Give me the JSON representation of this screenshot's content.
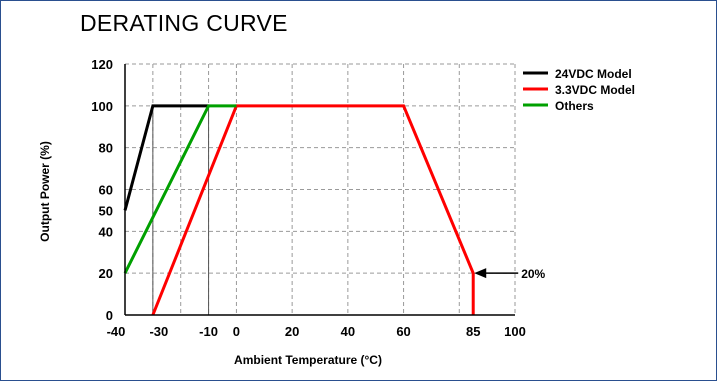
{
  "chart_data": {
    "type": "line",
    "title": "DERATING CURVE",
    "xlabel": "Ambient Temperature (°C)",
    "ylabel": "Output Power (%)",
    "xlim": [
      -40,
      100
    ],
    "ylim": [
      0,
      120
    ],
    "x_ticks": [
      "-40",
      "-30",
      "-10",
      "0",
      "20",
      "40",
      "60",
      "85",
      "100"
    ],
    "x_tick_values": [
      -40,
      -30,
      -10,
      0,
      20,
      40,
      60,
      85,
      100
    ],
    "y_ticks": [
      "0",
      "20",
      "40",
      "50",
      "60",
      "80",
      "100",
      "120"
    ],
    "y_tick_values": [
      0,
      20,
      40,
      50,
      60,
      80,
      100,
      120
    ],
    "grid": true,
    "legend_position": "right",
    "series": [
      {
        "name": "24VDC Model",
        "color": "#000000",
        "points": [
          [
            -40,
            50
          ],
          [
            -30,
            100
          ],
          [
            -20,
            100
          ],
          [
            -10,
            100
          ]
        ]
      },
      {
        "name": "3.3VDC Model",
        "color": "#ff0000",
        "points": [
          [
            -30,
            0
          ],
          [
            0,
            100
          ],
          [
            60,
            100
          ],
          [
            85,
            20
          ],
          [
            85,
            0
          ]
        ]
      },
      {
        "name": "Others",
        "color": "#00a000",
        "points": [
          [
            -40,
            20
          ],
          [
            -10,
            100
          ],
          [
            0,
            100
          ]
        ]
      }
    ],
    "annotations": [
      {
        "text": "20%",
        "x": 85,
        "y": 20
      }
    ]
  }
}
